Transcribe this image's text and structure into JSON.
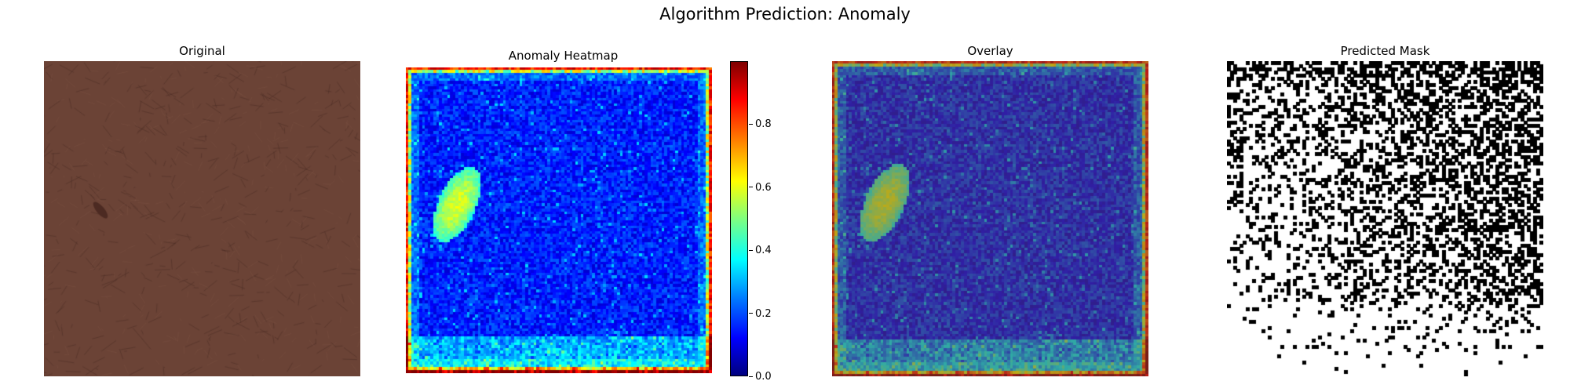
{
  "title": "Algorithm Prediction: Anomaly",
  "panels": {
    "original": {
      "title": "Original"
    },
    "heatmap": {
      "title": "Anomaly Heatmap"
    },
    "overlay": {
      "title": "Overlay"
    },
    "mask": {
      "title": "Predicted Mask"
    }
  },
  "colorbar": {
    "colormap": "jet",
    "range": [
      0.0,
      1.0
    ],
    "ticks": [
      "0.0",
      "0.2",
      "0.4",
      "0.6",
      "0.8"
    ]
  },
  "chart_data": [
    {
      "type": "image",
      "title": "Original",
      "content": "brown leather texture with a small dark scratch on the left"
    },
    {
      "type": "heatmap",
      "title": "Anomaly Heatmap",
      "colormap": "jet",
      "vmin": 0.0,
      "vmax": 1.0,
      "anomaly_peak_value": 0.45,
      "background_value": 0.15,
      "border_value": 0.8
    },
    {
      "type": "image",
      "title": "Overlay",
      "content": "heatmap blended over original image"
    },
    {
      "type": "image",
      "title": "Predicted Mask",
      "content": "binary mask, black pixels denser toward upper-right"
    }
  ],
  "colors": {
    "leather": "#6b4336",
    "mask_fg": "#000000",
    "mask_bg": "#ffffff"
  }
}
